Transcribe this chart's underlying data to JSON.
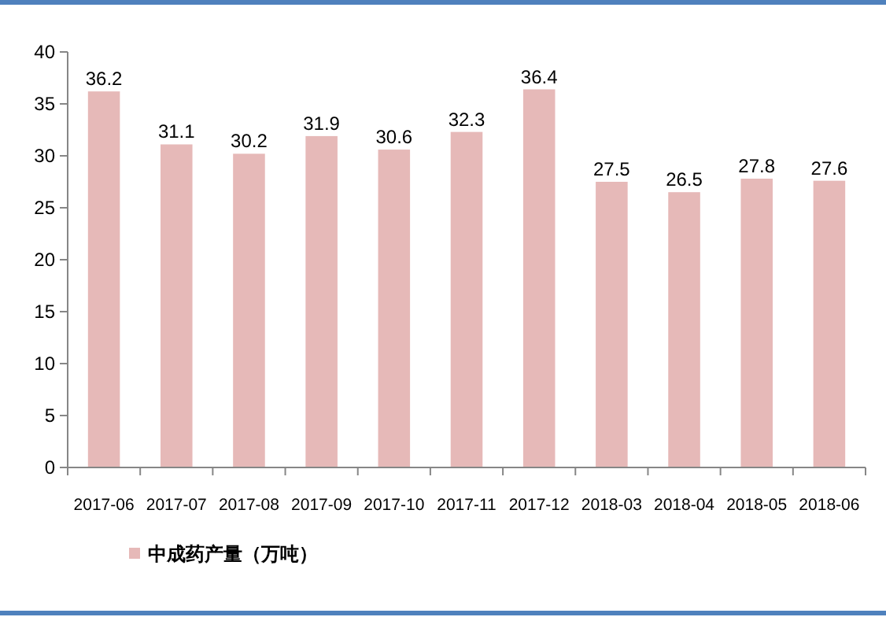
{
  "chart_data": {
    "type": "bar",
    "categories": [
      "2017-06",
      "2017-07",
      "2017-08",
      "2017-09",
      "2017-10",
      "2017-11",
      "2017-12",
      "2018-03",
      "2018-04",
      "2018-05",
      "2018-06"
    ],
    "series": [
      {
        "name": "中成药产量（万吨）",
        "color": "#e6b9b8",
        "values": [
          36.2,
          31.1,
          30.2,
          31.9,
          30.6,
          32.3,
          36.4,
          27.5,
          26.5,
          27.8,
          27.6
        ]
      }
    ],
    "ylim": [
      0,
      40
    ],
    "yticks": [
      0,
      5,
      10,
      15,
      20,
      25,
      30,
      35,
      40
    ],
    "data_labels": true,
    "grid": false,
    "legend": "bottom left"
  }
}
